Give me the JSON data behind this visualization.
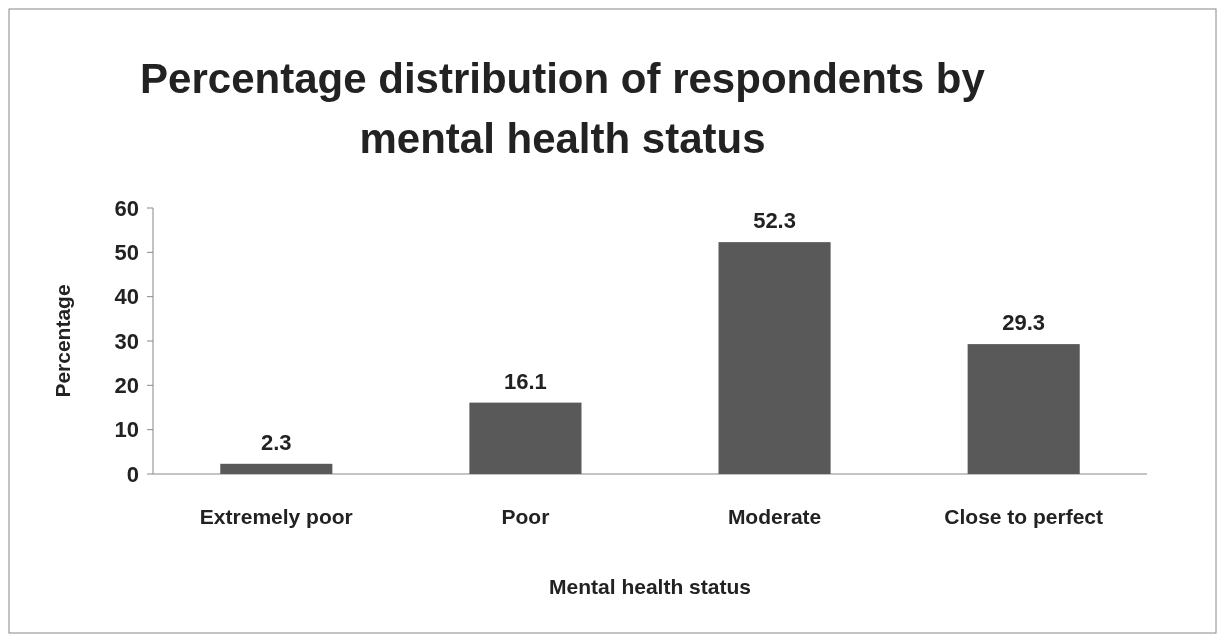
{
  "chart_data": {
    "type": "bar",
    "title": "Percentage distribution of respondents by mental health status",
    "xlabel": "Mental health status",
    "ylabel": "Percentage",
    "categories": [
      "Extremely poor",
      "Poor",
      "Moderate",
      "Close to perfect"
    ],
    "values": [
      2.3,
      16.1,
      52.3,
      29.3
    ],
    "color": "#595959",
    "data_labels": true,
    "ylim": [
      0,
      60
    ],
    "yticks": [
      0,
      10,
      20,
      30,
      40,
      50,
      60
    ],
    "grid": false
  }
}
